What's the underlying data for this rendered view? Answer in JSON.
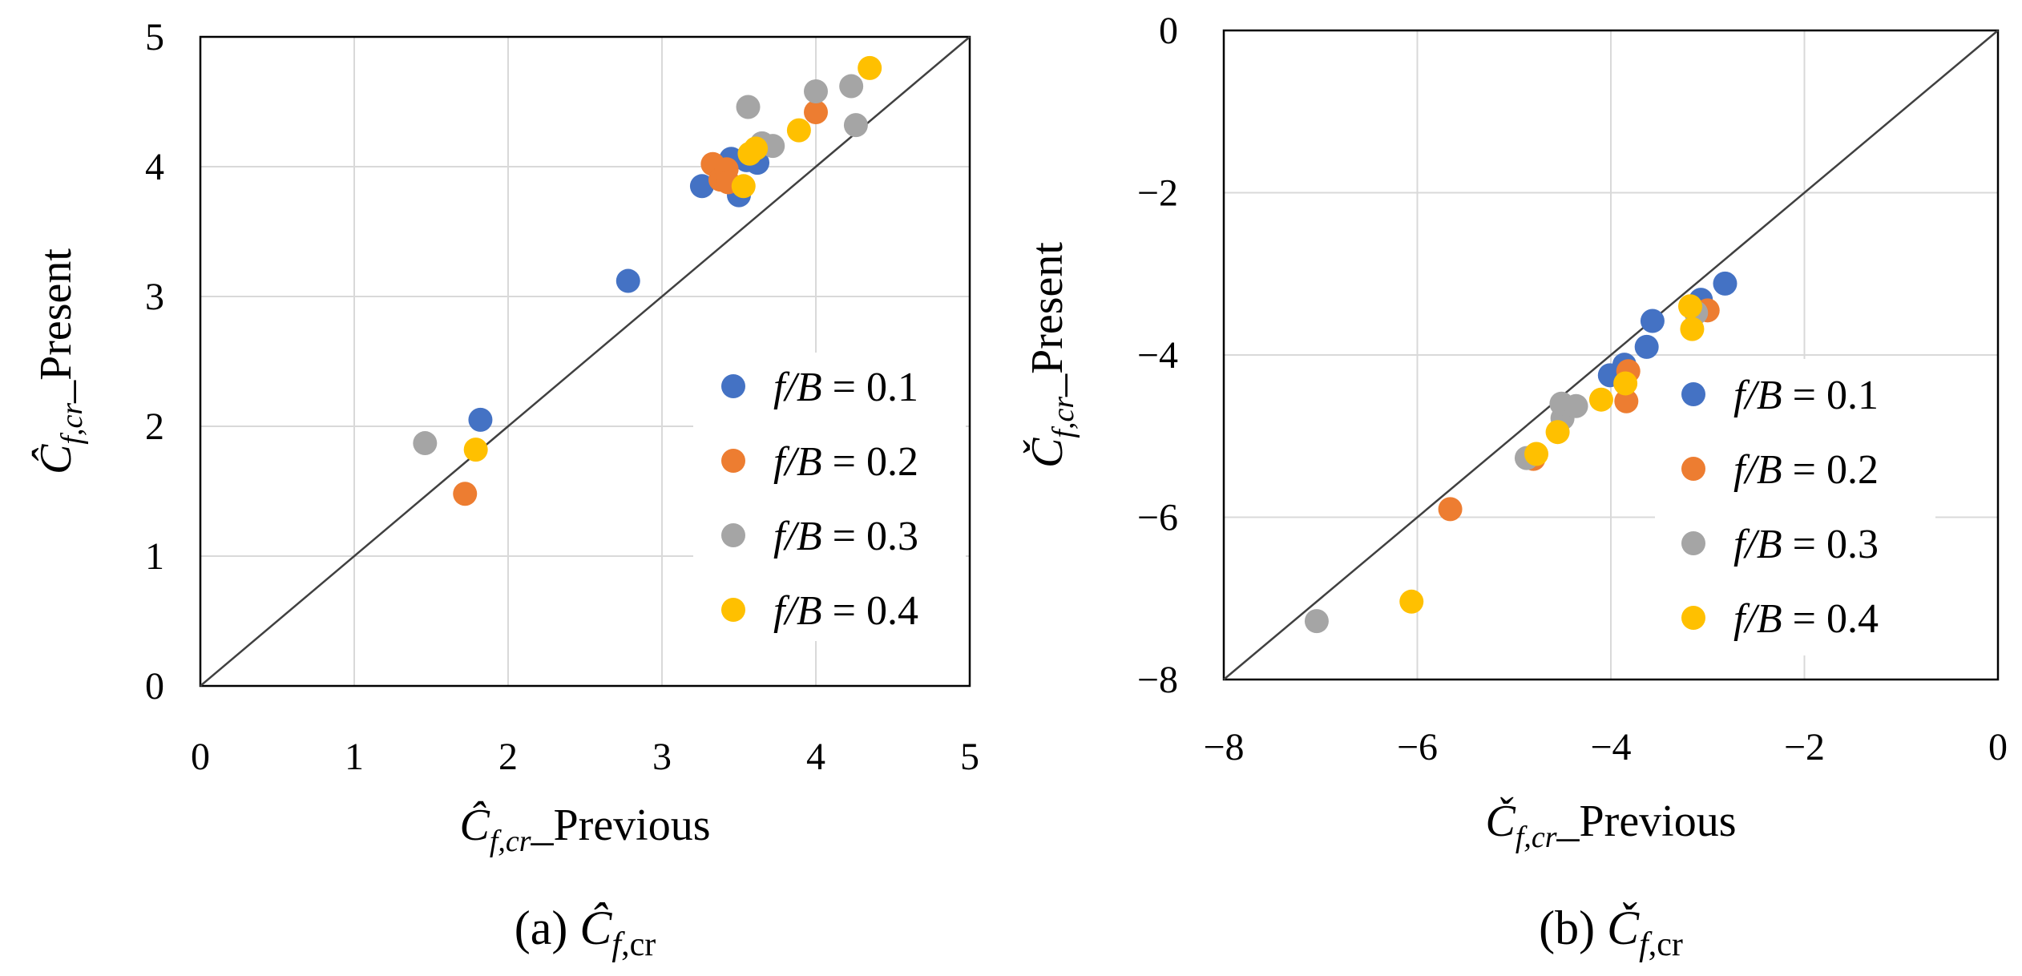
{
  "chart_data": [
    {
      "type": "scatter",
      "id": "a",
      "xlabel": {
        "sym": "Ĉ",
        "sub": "f,cr",
        "rest": "_Previous"
      },
      "ylabel": {
        "sym": "Ĉ",
        "sub": "f,cr",
        "rest": "_Present"
      },
      "caption": {
        "prefix": "(a) ",
        "sym": "Ĉ",
        "sub_italic": "f",
        "sub_roman": ",cr"
      },
      "xlim": [
        0,
        5
      ],
      "ylim": [
        0,
        5
      ],
      "xticks": [
        "0",
        "1",
        "2",
        "3",
        "4",
        "5"
      ],
      "yticks": [
        "0",
        "1",
        "2",
        "3",
        "4",
        "5"
      ],
      "grid": true,
      "legend_position": "bottom-right",
      "diagonal": true,
      "series": [
        {
          "name": "f/B = 0.1",
          "label_var": "f/B",
          "label_val": "= 0.1",
          "color": "#4472C4",
          "points": [
            [
              1.82,
              2.05
            ],
            [
              2.78,
              3.12
            ],
            [
              3.26,
              3.85
            ],
            [
              3.45,
              4.06
            ],
            [
              3.5,
              3.78
            ],
            [
              3.55,
              4.05
            ],
            [
              3.62,
              4.03
            ]
          ]
        },
        {
          "name": "f/B = 0.2",
          "label_var": "f/B",
          "label_val": "= 0.2",
          "color": "#ED7D31",
          "points": [
            [
              1.72,
              1.48
            ],
            [
              3.33,
              4.02
            ],
            [
              3.38,
              3.9
            ],
            [
              3.42,
              3.98
            ],
            [
              3.43,
              3.88
            ],
            [
              4.0,
              4.42
            ]
          ]
        },
        {
          "name": "f/B = 0.3",
          "label_var": "f/B",
          "label_val": "= 0.3",
          "color": "#A5A5A5",
          "points": [
            [
              1.46,
              1.87
            ],
            [
              3.56,
              4.46
            ],
            [
              3.65,
              4.18
            ],
            [
              3.72,
              4.16
            ],
            [
              4.0,
              4.58
            ],
            [
              4.23,
              4.62
            ],
            [
              4.26,
              4.32
            ]
          ]
        },
        {
          "name": "f/B = 0.4",
          "label_var": "f/B",
          "label_val": "= 0.4",
          "color": "#FFC000",
          "points": [
            [
              1.79,
              1.82
            ],
            [
              3.53,
              3.85
            ],
            [
              3.57,
              4.1
            ],
            [
              3.61,
              4.14
            ],
            [
              3.89,
              4.28
            ],
            [
              4.35,
              4.76
            ]
          ]
        }
      ]
    },
    {
      "type": "scatter",
      "id": "b",
      "xlabel": {
        "sym": "Č",
        "sub": "f,cr",
        "rest": "_Previous"
      },
      "ylabel": {
        "sym": "Č",
        "sub": "f,cr",
        "rest": "_Present"
      },
      "caption": {
        "prefix": "(b) ",
        "sym": "Č",
        "sub_italic": "f",
        "sub_roman": ",cr"
      },
      "xlim": [
        -8,
        0
      ],
      "ylim": [
        -8,
        0
      ],
      "xticks": [
        "−8",
        "−6",
        "−4",
        "−2",
        "0"
      ],
      "yticks": [
        "−8",
        "−6",
        "−4",
        "−2",
        "0"
      ],
      "grid": true,
      "legend_position": "right",
      "diagonal": true,
      "series": [
        {
          "name": "f/B = 0.1",
          "label_var": "f/B",
          "label_val": "= 0.1",
          "color": "#4472C4",
          "points": [
            [
              -2.82,
              -3.12
            ],
            [
              -3.07,
              -3.32
            ],
            [
              -3.57,
              -3.58
            ],
            [
              -3.63,
              -3.9
            ],
            [
              -3.86,
              -4.12
            ],
            [
              -4.01,
              -4.25
            ]
          ]
        },
        {
          "name": "f/B = 0.2",
          "label_var": "f/B",
          "label_val": "= 0.2",
          "color": "#ED7D31",
          "points": [
            [
              -5.66,
              -5.9
            ],
            [
              -4.8,
              -5.28
            ],
            [
              -3.82,
              -4.2
            ],
            [
              -3.84,
              -4.57
            ],
            [
              -3.0,
              -3.45
            ]
          ]
        },
        {
          "name": "f/B = 0.3",
          "label_var": "f/B",
          "label_val": "= 0.3",
          "color": "#A5A5A5",
          "points": [
            [
              -7.04,
              -7.28
            ],
            [
              -4.87,
              -5.27
            ],
            [
              -4.5,
              -4.78
            ],
            [
              -4.51,
              -4.6
            ],
            [
              -4.36,
              -4.63
            ],
            [
              -3.12,
              -3.48
            ]
          ]
        },
        {
          "name": "f/B = 0.4",
          "label_var": "f/B",
          "label_val": "= 0.4",
          "color": "#FFC000",
          "points": [
            [
              -6.06,
              -7.04
            ],
            [
              -4.77,
              -5.22
            ],
            [
              -4.55,
              -4.95
            ],
            [
              -4.1,
              -4.55
            ],
            [
              -3.85,
              -4.35
            ],
            [
              -3.18,
              -3.4
            ],
            [
              -3.16,
              -3.68
            ]
          ]
        }
      ]
    }
  ]
}
